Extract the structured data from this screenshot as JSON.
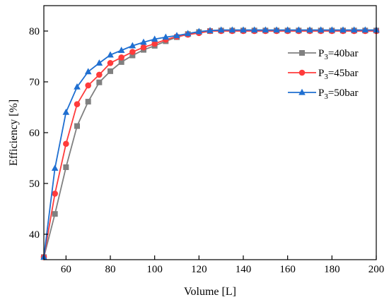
{
  "chart_data": {
    "type": "line",
    "title": "",
    "xlabel": "Volume [L]",
    "ylabel": "Efficiency [%]",
    "xlim": [
      50,
      200
    ],
    "ylim": [
      35,
      85
    ],
    "xticks": [
      60,
      80,
      100,
      120,
      140,
      160,
      180,
      200
    ],
    "yticks": [
      40,
      50,
      60,
      70,
      80
    ],
    "grid": false,
    "legend_position": "top-right",
    "x": [
      50,
      55,
      60,
      65,
      70,
      75,
      80,
      85,
      90,
      95,
      100,
      105,
      110,
      115,
      120,
      125,
      130,
      135,
      140,
      145,
      150,
      155,
      160,
      165,
      170,
      175,
      180,
      185,
      190,
      195,
      200
    ],
    "series": [
      {
        "label_main": "P",
        "label_sub": "3",
        "label_rest": "=40bar",
        "color": "#808080",
        "marker": "square",
        "values": [
          35.5,
          44.0,
          53.2,
          61.3,
          66.1,
          69.9,
          72.1,
          73.9,
          75.2,
          76.3,
          77.1,
          78.0,
          78.8,
          79.4,
          79.8,
          80.0,
          80.1,
          80.1,
          80.1,
          80.1,
          80.1,
          80.1,
          80.1,
          80.1,
          80.1,
          80.1,
          80.1,
          80.1,
          80.1,
          80.1,
          80.1
        ]
      },
      {
        "label_main": "P",
        "label_sub": "3",
        "label_rest": "=45bar",
        "color": "#ff3b3b",
        "marker": "circle",
        "values": [
          35.5,
          48.0,
          57.8,
          65.6,
          69.3,
          71.4,
          73.7,
          74.8,
          75.9,
          76.8,
          77.5,
          78.3,
          78.9,
          79.3,
          79.6,
          80.0,
          80.0,
          80.0,
          80.0,
          80.0,
          80.0,
          80.0,
          80.0,
          80.0,
          80.0,
          80.0,
          80.0,
          80.0,
          80.0,
          80.0,
          80.0
        ]
      },
      {
        "label_main": "P",
        "label_sub": "3",
        "label_rest": "=50bar",
        "color": "#1f6fd1",
        "marker": "triangle",
        "values": [
          35.5,
          53.0,
          64.0,
          69.0,
          72.0,
          73.7,
          75.3,
          76.2,
          77.1,
          77.8,
          78.4,
          78.8,
          79.1,
          79.5,
          79.9,
          80.1,
          80.2,
          80.2,
          80.2,
          80.2,
          80.2,
          80.2,
          80.2,
          80.2,
          80.2,
          80.2,
          80.2,
          80.2,
          80.2,
          80.2,
          80.2
        ]
      }
    ]
  }
}
